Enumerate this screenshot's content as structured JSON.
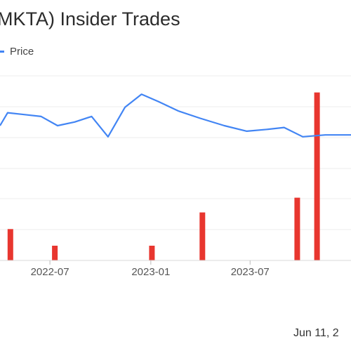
{
  "title": "MKTA) Insider Trades",
  "legend": {
    "label": "Price",
    "color": "#4285f4"
  },
  "footer_date": "Jun 11, 2",
  "chart_data": {
    "type": "line+bar",
    "title": "MKTA) Insider Trades",
    "x_ticks": [
      {
        "label": "2022-07",
        "value": "2022-07-01"
      },
      {
        "label": "2023-01",
        "value": "2023-01-01"
      },
      {
        "label": "2023-07",
        "value": "2023-07-01"
      }
    ],
    "x_range": [
      "2022-04-01",
      "2024-01-01"
    ],
    "grid": true,
    "legend_position": "top-left",
    "series": [
      {
        "name": "Price",
        "kind": "line",
        "color": "#4285f4",
        "y_range": [
          0,
          100
        ],
        "points": [
          {
            "x": "2022-04-01",
            "y": 73
          },
          {
            "x": "2022-04-15",
            "y": 80
          },
          {
            "x": "2022-05-15",
            "y": 79
          },
          {
            "x": "2022-06-15",
            "y": 78
          },
          {
            "x": "2022-07-15",
            "y": 73
          },
          {
            "x": "2022-08-15",
            "y": 75
          },
          {
            "x": "2022-09-15",
            "y": 78
          },
          {
            "x": "2022-10-15",
            "y": 67
          },
          {
            "x": "2022-11-15",
            "y": 83
          },
          {
            "x": "2022-12-15",
            "y": 90
          },
          {
            "x": "2023-01-15",
            "y": 86
          },
          {
            "x": "2023-02-20",
            "y": 81
          },
          {
            "x": "2023-04-01",
            "y": 77
          },
          {
            "x": "2023-05-15",
            "y": 73
          },
          {
            "x": "2023-06-25",
            "y": 70
          },
          {
            "x": "2023-08-01",
            "y": 71
          },
          {
            "x": "2023-09-01",
            "y": 72
          },
          {
            "x": "2023-10-05",
            "y": 67
          },
          {
            "x": "2023-11-15",
            "y": 68
          },
          {
            "x": "2024-01-01",
            "y": 68
          }
        ]
      },
      {
        "name": "Insider Trades",
        "kind": "bar",
        "color": "#e8362f",
        "y_range": [
          0,
          100
        ],
        "bars": [
          {
            "x": "2022-04-20",
            "y": 17
          },
          {
            "x": "2022-07-10",
            "y": 8
          },
          {
            "x": "2023-01-03",
            "y": 8
          },
          {
            "x": "2023-04-05",
            "y": 26
          },
          {
            "x": "2023-09-25",
            "y": 34
          },
          {
            "x": "2023-10-31",
            "y": 91
          }
        ]
      }
    ]
  }
}
